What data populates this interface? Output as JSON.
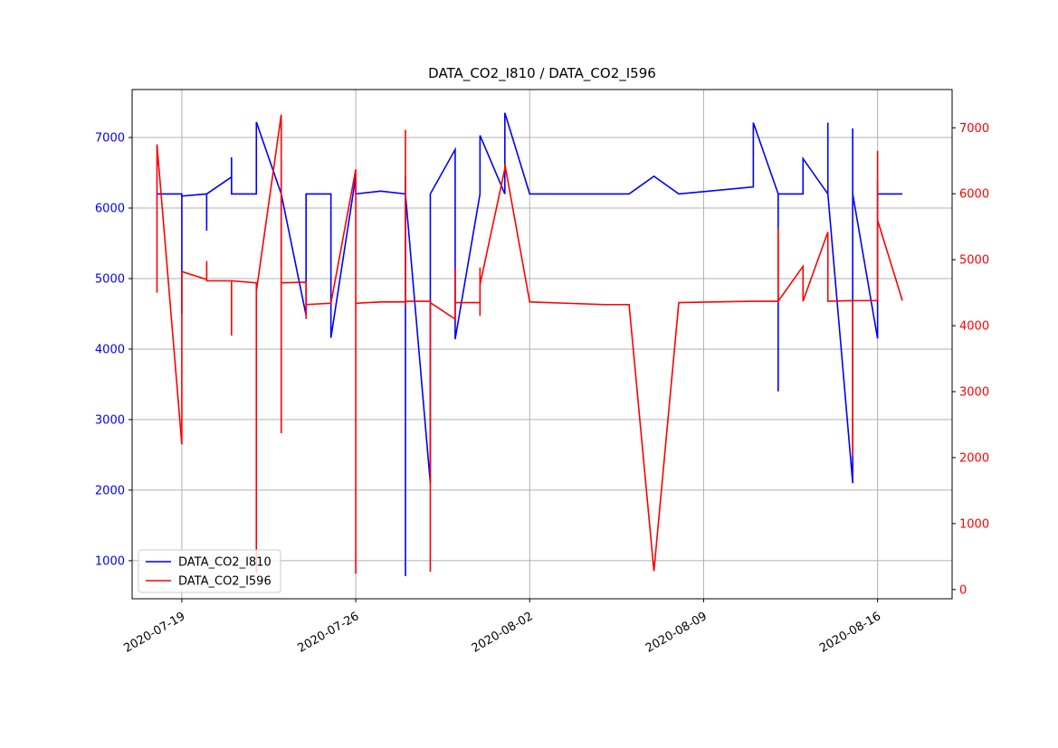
{
  "chart_data": {
    "type": "line",
    "title": "DATA_CO2_I810 / DATA_CO2_I596",
    "x": [
      "2020-07-18",
      "2020-07-18",
      "2020-07-19",
      "2020-07-19",
      "2020-07-19",
      "2020-07-19",
      "2020-07-20",
      "2020-07-20",
      "2020-07-20",
      "2020-07-21",
      "2020-07-21",
      "2020-07-21",
      "2020-07-21",
      "2020-07-22",
      "2020-07-22",
      "2020-07-22",
      "2020-07-22",
      "2020-07-22",
      "2020-07-23",
      "2020-07-23",
      "2020-07-23",
      "2020-07-23",
      "2020-07-24",
      "2020-07-24",
      "2020-07-24",
      "2020-07-24",
      "2020-07-25",
      "2020-07-25",
      "2020-07-26",
      "2020-07-26",
      "2020-07-26",
      "2020-07-26",
      "2020-07-26",
      "2020-07-27",
      "2020-07-28",
      "2020-07-28",
      "2020-07-28",
      "2020-07-28",
      "2020-07-28",
      "2020-07-29",
      "2020-07-29",
      "2020-07-29",
      "2020-07-30",
      "2020-07-30",
      "2020-07-30",
      "2020-07-31",
      "2020-07-31",
      "2020-07-31",
      "2020-07-31",
      "2020-08-01",
      "2020-08-01",
      "2020-08-02",
      "2020-08-05",
      "2020-08-06",
      "2020-08-07",
      "2020-08-08",
      "2020-08-11",
      "2020-08-11",
      "2020-08-12",
      "2020-08-12",
      "2020-08-12",
      "2020-08-13",
      "2020-08-13",
      "2020-08-14",
      "2020-08-14",
      "2020-08-14",
      "2020-08-15",
      "2020-08-15",
      "2020-08-15",
      "2020-08-16",
      "2020-08-16",
      "2020-08-16",
      "2020-08-17",
      "2020-08-17"
    ],
    "series": [
      {
        "name": "DATA_CO2_I810",
        "color": "#0000ff",
        "axis": "y",
        "values": [
          6200,
          6200,
          6200,
          4500,
          6200,
          6170,
          6200,
          5680,
          6200,
          6440,
          6200,
          6720,
          6200,
          6200,
          6720,
          6920,
          6200,
          7220,
          6200,
          6200,
          5160,
          6200,
          4480,
          6200,
          6200,
          6200,
          6200,
          4160,
          6450,
          6280,
          6200,
          6200,
          6200,
          6240,
          6200,
          6450,
          780,
          2100,
          6200,
          2100,
          6200,
          6200,
          6830,
          6200,
          4140,
          6200,
          6200,
          6200,
          7030,
          6200,
          7350,
          6200,
          6200,
          6200,
          6450,
          6200,
          6300,
          7210,
          6200,
          3400,
          6200,
          6200,
          6700,
          6200,
          7210,
          6200,
          2100,
          7130,
          6200,
          4150,
          6400,
          6200,
          6200,
          6200
        ]
      },
      {
        "name": "DATA_CO2_I596",
        "color": "#ff0000",
        "axis": "y2",
        "values": [
          4500,
          6750,
          2200,
          4450,
          4480,
          4820,
          4700,
          4980,
          4680,
          4680,
          4650,
          3850,
          4680,
          4650,
          4530,
          250,
          4600,
          4520,
          7200,
          4650,
          2370,
          4650,
          4660,
          4660,
          4100,
          4320,
          4340,
          4340,
          6370,
          240,
          4340,
          4610,
          4340,
          4360,
          4360,
          4300,
          6970,
          4370,
          4370,
          4370,
          270,
          4350,
          4100,
          4880,
          4350,
          4350,
          4880,
          4150,
          4620,
          6380,
          6450,
          4360,
          4320,
          4320,
          280,
          4350,
          4370,
          4370,
          4370,
          5480,
          4370,
          4900,
          4370,
          5420,
          4370,
          4370,
          4380,
          2020,
          4380,
          4380,
          6650,
          5600,
          4380,
          4380
        ]
      }
    ],
    "xlim": [
      "2020-07-17",
      "2020-08-19"
    ],
    "xticks": [
      "2020-07-19",
      "2020-07-26",
      "2020-08-02",
      "2020-08-09",
      "2020-08-16"
    ],
    "ylim": [
      460,
      7680
    ],
    "yticks": [
      1000,
      2000,
      3000,
      4000,
      5000,
      6000,
      7000
    ],
    "y2lim": [
      -140,
      7580
    ],
    "y2ticks": [
      0,
      1000,
      2000,
      3000,
      4000,
      5000,
      6000,
      7000
    ],
    "grid": true,
    "legend": "lower left"
  }
}
